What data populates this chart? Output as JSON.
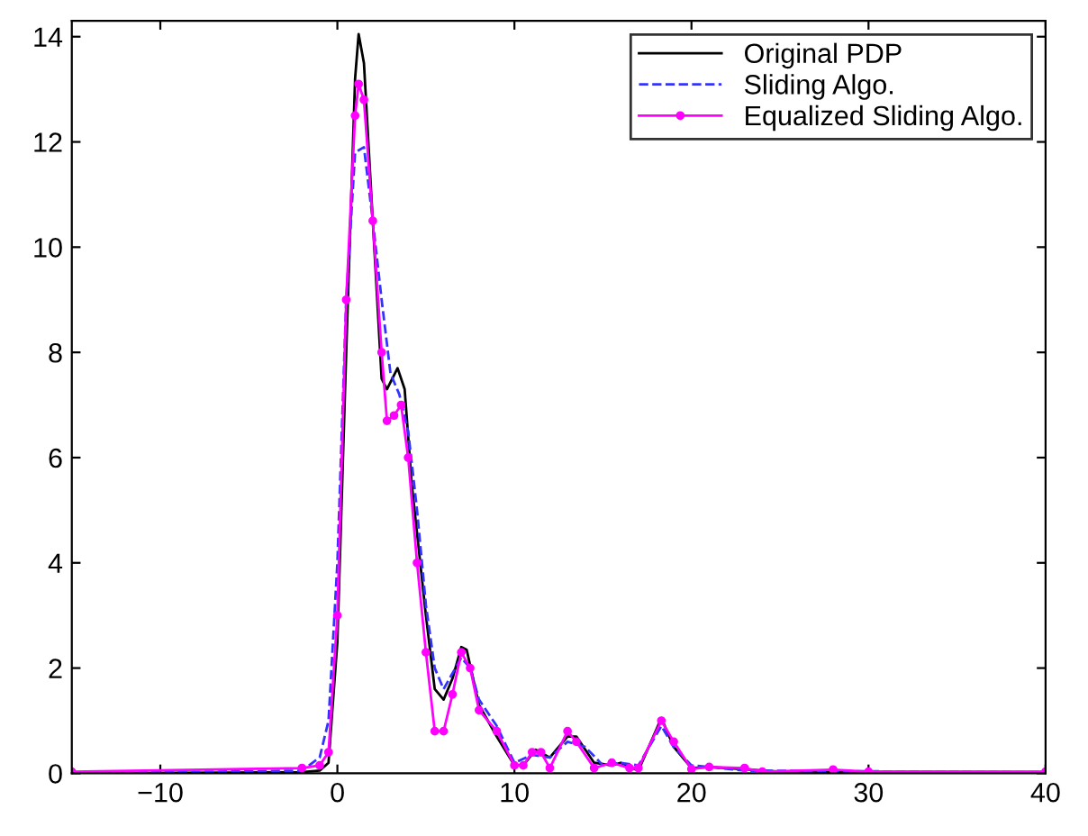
{
  "chart_data": {
    "type": "line",
    "xlim": [
      -15,
      40
    ],
    "xticks": [
      {
        "value": -10,
        "label": "−10"
      },
      0,
      10,
      20,
      30,
      40
    ],
    "ylim": [
      0,
      14.3
    ],
    "yticks": [
      0,
      2,
      4,
      6,
      8,
      10,
      12,
      14
    ],
    "grid": false,
    "legend": "top right",
    "series": [
      {
        "name": "Original PDP",
        "color": "#000000",
        "line_style": "solid",
        "marker": "none",
        "x": [
          -15,
          -2,
          -1,
          -0.5,
          0,
          0.5,
          1,
          1.2,
          1.5,
          2,
          2.5,
          2.8,
          3.1,
          3.4,
          3.8,
          4.2,
          5,
          5.5,
          6,
          6.5,
          7,
          7.3,
          8,
          9,
          10,
          10.5,
          11.2,
          12,
          13,
          13.5,
          14.5,
          15.5,
          16,
          17,
          18.3,
          19,
          20,
          21,
          22,
          25,
          40
        ],
        "values": [
          0,
          0.02,
          0.05,
          0.2,
          2.5,
          8,
          13.2,
          14.05,
          13.5,
          10.5,
          7.5,
          7.3,
          7.5,
          7.7,
          7.3,
          5.5,
          3,
          1.6,
          1.4,
          1.8,
          2.4,
          2.35,
          1.3,
          0.7,
          0.15,
          0.15,
          0.45,
          0.3,
          0.7,
          0.7,
          0.2,
          0.15,
          0.2,
          0.05,
          1.05,
          0.5,
          0.1,
          0.12,
          0.1,
          0.03,
          0.02
        ]
      },
      {
        "name": "Sliding Algo.",
        "color": "#3333ff",
        "line_style": "dashed",
        "marker": "none",
        "x": [
          -15,
          -2,
          -1,
          -0.5,
          0,
          0.5,
          1,
          1.5,
          2,
          2.5,
          3,
          3.5,
          4,
          4.5,
          5,
          5.5,
          6,
          6.5,
          7,
          7.5,
          8,
          9,
          10,
          11,
          12,
          13,
          14,
          15,
          16,
          17,
          18.3,
          19,
          20,
          21,
          23,
          40
        ],
        "values": [
          0,
          0.05,
          0.3,
          1.0,
          4,
          9,
          11.8,
          11.9,
          10.5,
          9,
          7.6,
          7.2,
          6.5,
          5,
          3.2,
          2,
          1.6,
          1.9,
          2.2,
          2.0,
          1.4,
          0.9,
          0.2,
          0.35,
          0.3,
          0.6,
          0.5,
          0.15,
          0.2,
          0.15,
          0.9,
          0.5,
          0.15,
          0.12,
          0.05,
          0.02
        ]
      },
      {
        "name": "Equalized Sliding Algo.",
        "color": "#ff00ff",
        "line_style": "solid",
        "marker": "circle",
        "x": [
          -15,
          -2,
          -1,
          -0.5,
          0,
          0.5,
          1,
          1.2,
          1.5,
          2,
          2.5,
          2.8,
          3.2,
          3.6,
          4,
          4.5,
          5,
          5.5,
          6,
          6.5,
          7,
          7.5,
          8,
          9,
          10,
          10.5,
          11,
          11.5,
          12,
          13,
          13.5,
          14.5,
          15.5,
          16.5,
          17,
          18.3,
          19,
          20,
          21,
          23,
          24,
          28,
          30,
          40
        ],
        "values": [
          0.03,
          0.1,
          0.15,
          0.4,
          3,
          9,
          12.5,
          13.1,
          12.8,
          10.5,
          8,
          6.7,
          6.8,
          7.0,
          6.0,
          4.0,
          2.3,
          0.8,
          0.8,
          1.5,
          2.3,
          2.0,
          1.2,
          0.8,
          0.15,
          0.15,
          0.4,
          0.4,
          0.1,
          0.8,
          0.6,
          0.1,
          0.2,
          0.1,
          0.1,
          1.0,
          0.6,
          0.08,
          0.12,
          0.1,
          0.03,
          0.07,
          0.03,
          0.03
        ]
      }
    ]
  }
}
